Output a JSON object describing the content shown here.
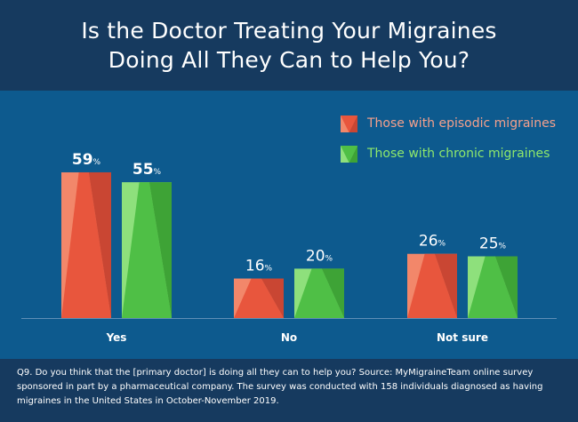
{
  "title": {
    "line1": "Is the Doctor Treating Your Migraines",
    "line2": "Doing All They Can to Help You?"
  },
  "legend": {
    "episodic_label": "Those with episodic migraines",
    "chronic_label": "Those with chronic migraines"
  },
  "colors": {
    "episodic": "#e8563d",
    "episodic_light": "#f2876a",
    "episodic_dark": "#c94633",
    "episodic_label": "#f4a08c",
    "chronic": "#4fbf46",
    "chronic_light": "#8ee07c",
    "chronic_dark": "#3ea336",
    "chronic_label": "#8fe86b",
    "background": "#0f4a7a",
    "title_band": "#163a5f"
  },
  "footnote": "Q9. Do you think that the [primary doctor] is doing all they can to help you? Source: MyMigraineTeam online survey sponsored in part by a pharmaceutical company. The survey was conducted with 158 individuals diagnosed as having migraines in the United States in October-November 2019.",
  "chart_data": {
    "type": "bar",
    "title": "Is the Doctor Treating Your Migraines Doing All They Can to Help You?",
    "categories": [
      "Yes",
      "No",
      "Not sure"
    ],
    "series": [
      {
        "name": "Those with episodic migraines",
        "values": [
          59,
          16,
          26
        ]
      },
      {
        "name": "Those with chronic migraines",
        "values": [
          55,
          20,
          25
        ]
      }
    ],
    "value_suffix": "%",
    "ylim": [
      0,
      100
    ],
    "grid": false,
    "legend_position": "top-right"
  }
}
